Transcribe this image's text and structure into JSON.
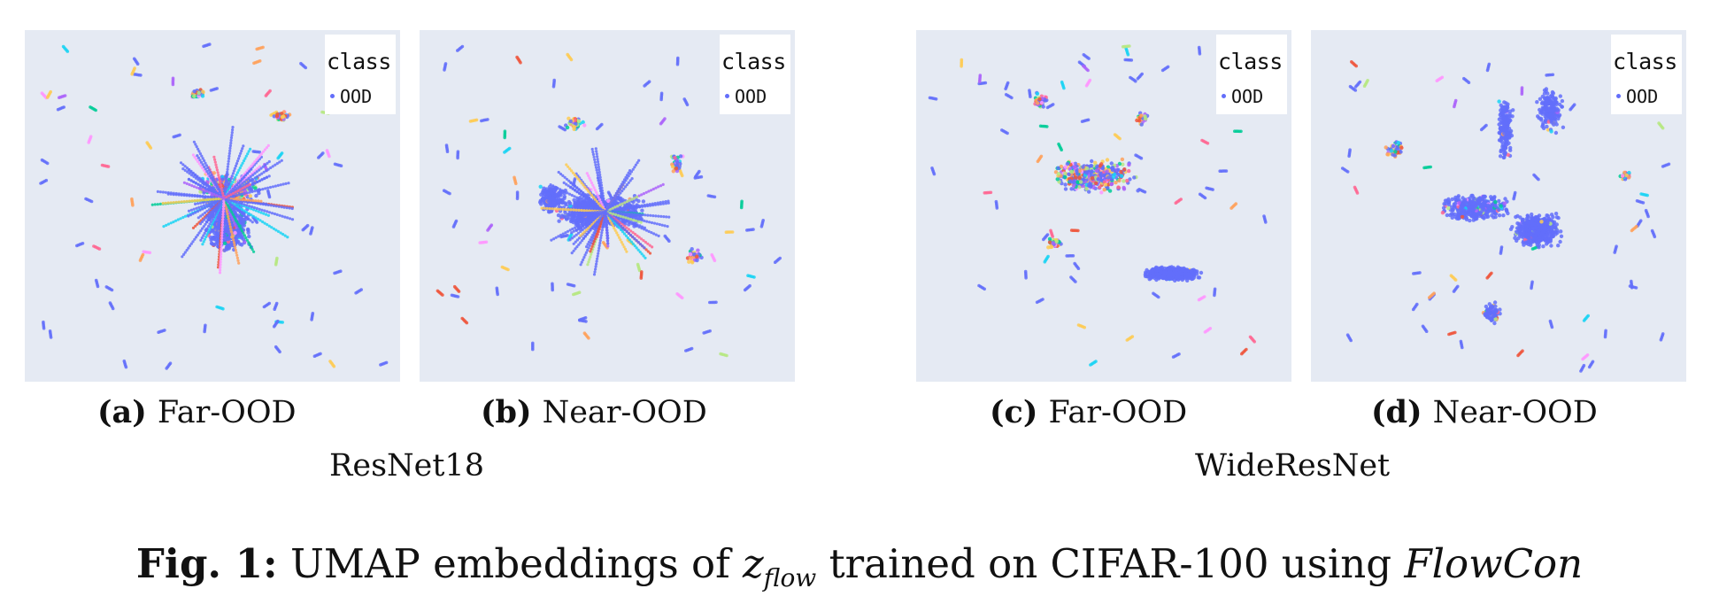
{
  "panels": [
    {
      "id": "a",
      "label": "(a)",
      "title": "Far-OOD",
      "legend_title": "class",
      "legend_item": "OOD"
    },
    {
      "id": "b",
      "label": "(b)",
      "title": "Near-OOD",
      "legend_title": "class",
      "legend_item": "OOD"
    },
    {
      "id": "c",
      "label": "(c)",
      "title": "Far-OOD",
      "legend_title": "class",
      "legend_item": "OOD"
    },
    {
      "id": "d",
      "label": "(d)",
      "title": "Near-OOD",
      "legend_title": "class",
      "legend_item": "OOD"
    }
  ],
  "groups": [
    "ResNet18",
    "WideResNet"
  ],
  "figure_caption": {
    "label": "Fig. 1:",
    "text_before": "UMAP embeddings of ",
    "var_main": "z",
    "var_sub": "flow",
    "text_after": " trained on CIFAR-100 using ",
    "method": "FlowCon"
  },
  "colors": {
    "background": "#e5eaf3",
    "ood": "#636efa",
    "palette": [
      "#636efa",
      "#ef553b",
      "#00cc96",
      "#ab63fa",
      "#ffa15a",
      "#19d3f3",
      "#ff6692",
      "#b6e880",
      "#ff97ff",
      "#fecb52"
    ]
  }
}
